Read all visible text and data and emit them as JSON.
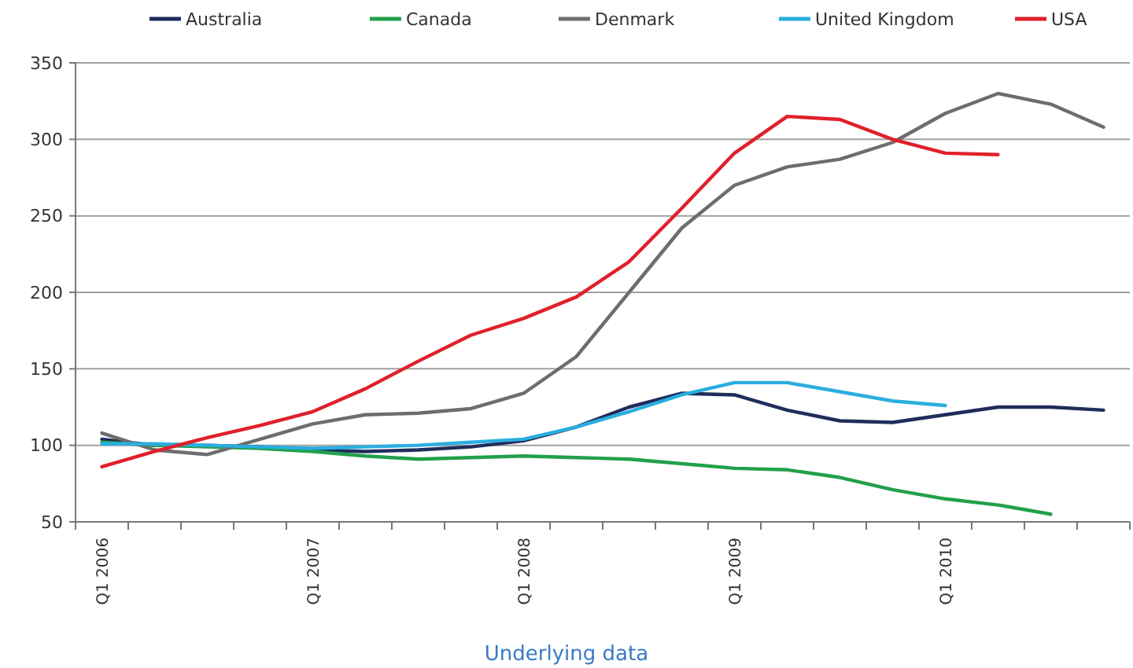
{
  "chart_data": {
    "type": "line",
    "categories": [
      "Q1 2006",
      null,
      null,
      null,
      "Q1 2007",
      null,
      null,
      null,
      "Q1 2008",
      null,
      null,
      null,
      "Q1 2009",
      null,
      null,
      null,
      "Q1 2010",
      null,
      null,
      null
    ],
    "series": [
      {
        "name": "Australia",
        "color": "#1f2d5c",
        "values": [
          104,
          100,
          100,
          99,
          97,
          96,
          97,
          99,
          103,
          112,
          125,
          134,
          133,
          123,
          116,
          115,
          120,
          125,
          125,
          123
        ]
      },
      {
        "name": "Canada",
        "color": "#22a04b",
        "values": [
          102,
          100,
          99,
          98,
          96,
          93,
          91,
          92,
          93,
          92,
          91,
          88,
          85,
          84,
          79,
          71,
          65,
          61,
          55,
          null
        ]
      },
      {
        "name": "Denmark",
        "color": "#6d6d6d",
        "values": [
          108,
          97,
          94,
          104,
          114,
          120,
          121,
          124,
          134,
          158,
          200,
          242,
          270,
          282,
          287,
          298,
          317,
          330,
          323,
          308
        ]
      },
      {
        "name": "United Kingdom",
        "color": "#2aaee0",
        "values": [
          101,
          101,
          100,
          99,
          98,
          99,
          100,
          102,
          104,
          112,
          122,
          133,
          141,
          141,
          135,
          129,
          126,
          null,
          null,
          null
        ]
      },
      {
        "name": "USA",
        "color": "#e0202a",
        "values": [
          86,
          96,
          105,
          113,
          122,
          137,
          155,
          172,
          183,
          197,
          220,
          255,
          291,
          315,
          313,
          300,
          291,
          290,
          null,
          null
        ]
      }
    ],
    "ylim": [
      50,
      350
    ],
    "yticks": [
      50,
      100,
      150,
      200,
      250,
      300,
      350
    ],
    "grid": "y",
    "legend": "top",
    "line_style": "solid",
    "annotations": [
      "Underlying data"
    ]
  }
}
